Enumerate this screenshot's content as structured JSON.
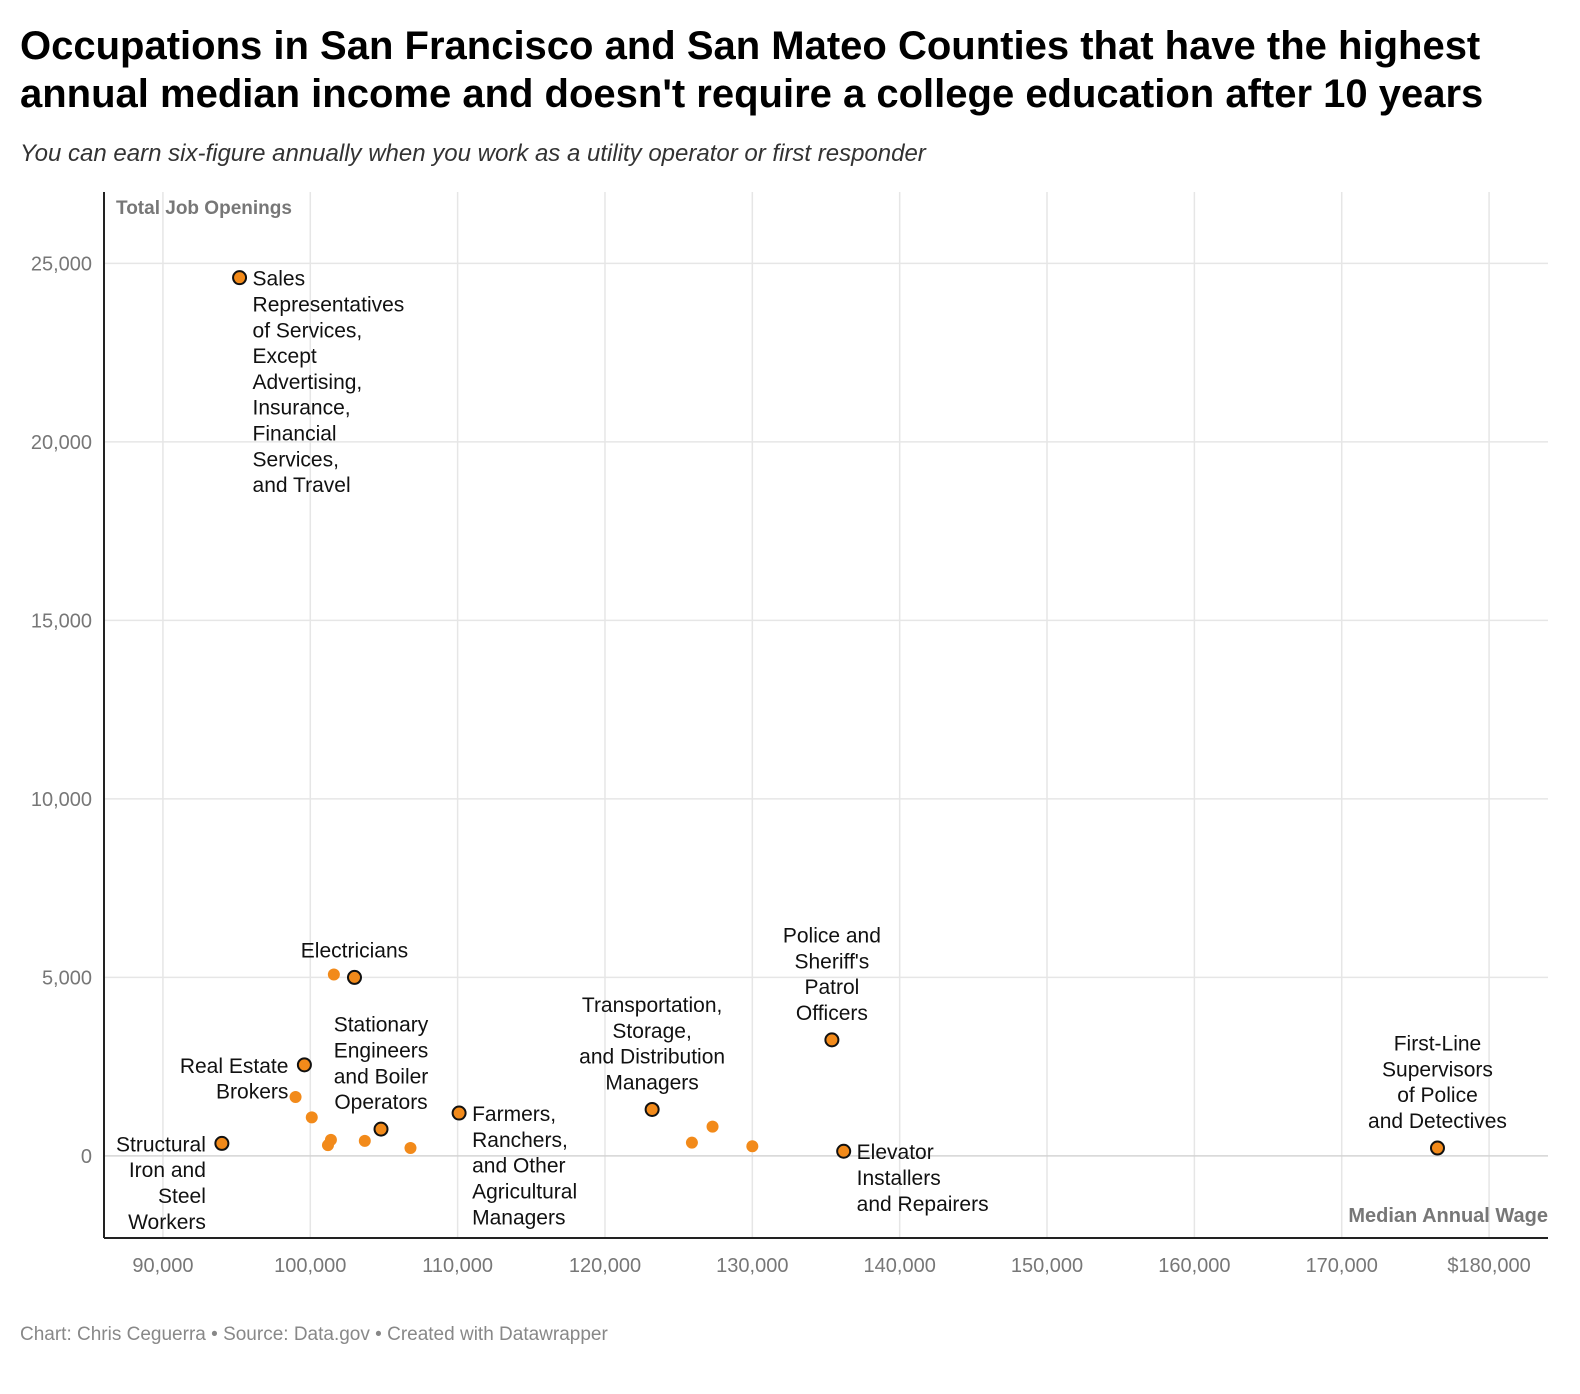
{
  "title": "Occupations in San Francisco and San Mateo Counties that have the highest annual median income and doesn't require a college education after 10 years",
  "subtitle": "You can earn six-figure annually when you work as a utility operator or first responder",
  "footer": {
    "credit": "Chart: Chris Ceguerra",
    "source": "Source: Data.gov",
    "tool": "Created with Datawrapper",
    "separator": "•"
  },
  "colors": {
    "point": "#f28a1a",
    "highlight_stroke": "#111111",
    "grid": "#e6e6e6",
    "axis": "#222222",
    "axis_label": "#777777",
    "tick": "#777777"
  },
  "chart_data": {
    "type": "scatter",
    "xlabel": "Median Annual Wage",
    "ylabel": "Total Job Openings",
    "xlim": [
      86000,
      184000
    ],
    "ylim": [
      -2300,
      27000
    ],
    "x_ticks": [
      {
        "value": 90000,
        "label": "90,000"
      },
      {
        "value": 100000,
        "label": "100,000"
      },
      {
        "value": 110000,
        "label": "110,000"
      },
      {
        "value": 120000,
        "label": "120,000"
      },
      {
        "value": 130000,
        "label": "130,000"
      },
      {
        "value": 140000,
        "label": "140,000"
      },
      {
        "value": 150000,
        "label": "150,000"
      },
      {
        "value": 160000,
        "label": "160,000"
      },
      {
        "value": 170000,
        "label": "170,000"
      },
      {
        "value": 180000,
        "label": "$180,000"
      }
    ],
    "y_ticks": [
      {
        "value": 0,
        "label": "0"
      },
      {
        "value": 5000,
        "label": "5,000"
      },
      {
        "value": 10000,
        "label": "10,000"
      },
      {
        "value": 15000,
        "label": "15,000"
      },
      {
        "value": 20000,
        "label": "20,000"
      },
      {
        "value": 25000,
        "label": "25,000"
      }
    ],
    "grid": true,
    "points": [
      {
        "x": 95200,
        "y": 24600,
        "highlight": true,
        "label": [
          "Sales",
          "Representatives",
          "of Services,",
          "Except",
          "Advertising,",
          "Insurance,",
          "Financial",
          "Services,",
          "and Travel"
        ],
        "label_pos": "right-below"
      },
      {
        "x": 103000,
        "y": 5000,
        "highlight": true,
        "label": [
          "Electricians"
        ],
        "label_pos": "above"
      },
      {
        "x": 101600,
        "y": 5080,
        "highlight": false
      },
      {
        "x": 99600,
        "y": 2550,
        "highlight": true,
        "label": [
          "Real Estate",
          "Brokers"
        ],
        "label_pos": "left"
      },
      {
        "x": 104800,
        "y": 750,
        "highlight": true,
        "label": [
          "Stationary",
          "Engineers",
          "and Boiler",
          "Operators"
        ],
        "label_pos": "above"
      },
      {
        "x": 94000,
        "y": 350,
        "highlight": true,
        "label": [
          "Structural",
          "Iron and",
          "Steel",
          "Workers"
        ],
        "label_pos": "left-below"
      },
      {
        "x": 110100,
        "y": 1200,
        "highlight": true,
        "label": [
          "Farmers,",
          "Ranchers,",
          "and Other",
          "Agricultural",
          "Managers"
        ],
        "label_pos": "right-below"
      },
      {
        "x": 123200,
        "y": 1300,
        "highlight": true,
        "label": [
          "Transportation,",
          "Storage,",
          "and Distribution",
          "Managers"
        ],
        "label_pos": "above"
      },
      {
        "x": 135400,
        "y": 3250,
        "highlight": true,
        "label": [
          "Police and",
          "Sheriff's",
          "Patrol",
          "Officers"
        ],
        "label_pos": "above"
      },
      {
        "x": 136200,
        "y": 130,
        "highlight": true,
        "label": [
          "Elevator",
          "Installers",
          "and Repairers"
        ],
        "label_pos": "right-below"
      },
      {
        "x": 176500,
        "y": 220,
        "highlight": true,
        "label": [
          "First-Line",
          "Supervisors",
          "of Police",
          "and Detectives"
        ],
        "label_pos": "above"
      },
      {
        "x": 99000,
        "y": 1650,
        "highlight": false
      },
      {
        "x": 100100,
        "y": 1080,
        "highlight": false
      },
      {
        "x": 101400,
        "y": 450,
        "highlight": false
      },
      {
        "x": 101200,
        "y": 300,
        "highlight": false
      },
      {
        "x": 103700,
        "y": 420,
        "highlight": false
      },
      {
        "x": 106800,
        "y": 220,
        "highlight": false
      },
      {
        "x": 125900,
        "y": 370,
        "highlight": false
      },
      {
        "x": 127300,
        "y": 820,
        "highlight": false
      },
      {
        "x": 130000,
        "y": 270,
        "highlight": false
      }
    ]
  }
}
